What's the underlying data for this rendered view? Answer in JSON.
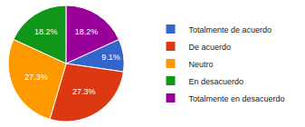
{
  "chart_data": {
    "type": "pie",
    "categories": [
      "Totalmente de acuerdo",
      "De acuerdo",
      "Neutro",
      "En desacuerdo",
      "Totalmente en desacuerdo"
    ],
    "values": [
      9.1,
      27.3,
      27.3,
      18.2,
      18.2
    ],
    "value_labels": [
      "9.1%",
      "27.3%",
      "27.3%",
      "18.2%",
      "18.2%"
    ],
    "colors": [
      "#3366cc",
      "#dc3912",
      "#ff9900",
      "#109618",
      "#990099"
    ],
    "data_labels": true,
    "legend": "right"
  }
}
